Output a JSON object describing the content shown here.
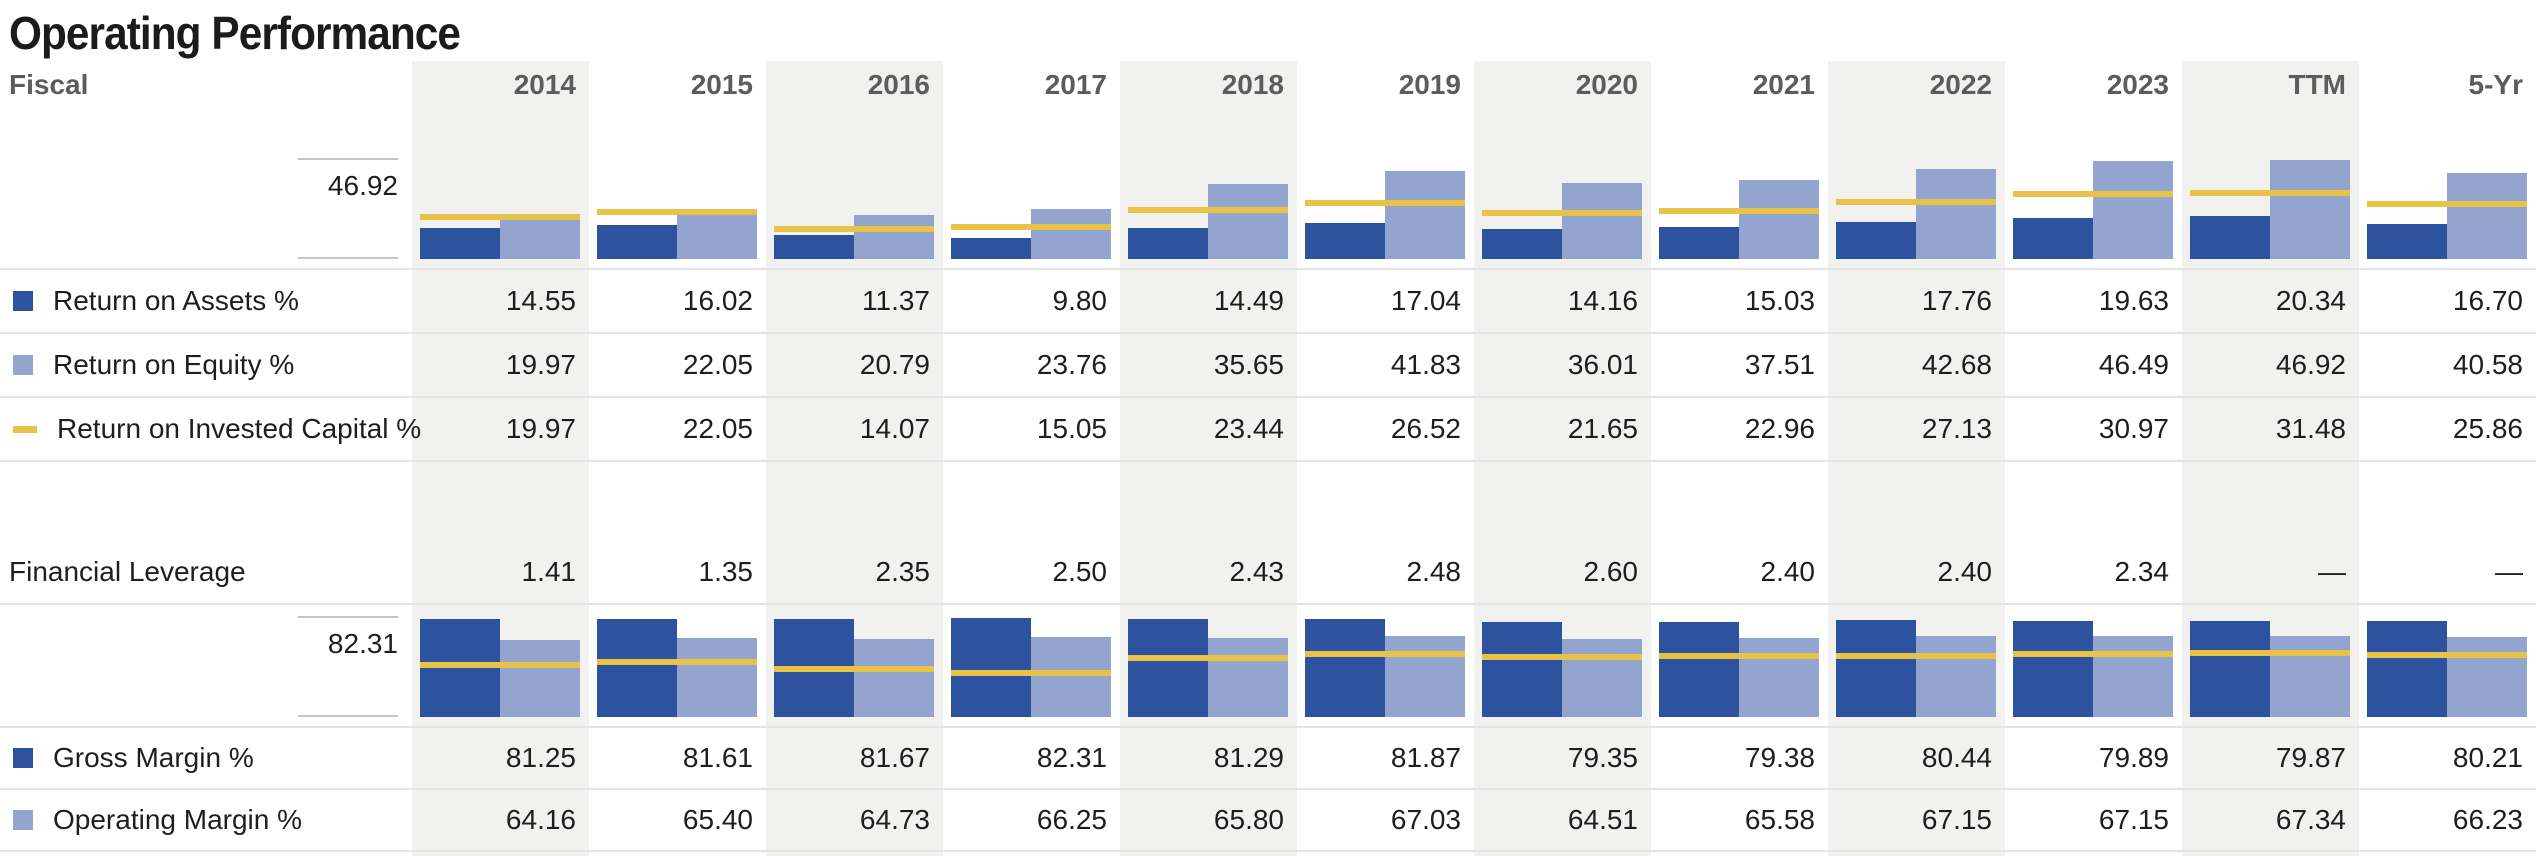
{
  "title": "Operating Performance",
  "header": {
    "fiscal_label": "Fiscal",
    "columns": [
      "2014",
      "2015",
      "2016",
      "2017",
      "2018",
      "2019",
      "2020",
      "2021",
      "2022",
      "2023",
      "TTM",
      "5-Yr"
    ],
    "shaded_column_indexes": [
      0,
      2,
      4,
      6,
      8,
      10
    ]
  },
  "colors": {
    "dark_blue": "#2e539e",
    "light_blue": "#93a5ce",
    "yellow": "#e8c348",
    "column_shade": "#f1f1f0",
    "divider": "#e4e4e4",
    "tick": "#c6c6c6",
    "header_text": "#5c5c5c",
    "text": "#1e1e1e"
  },
  "rows": [
    {
      "id": "return-on-assets",
      "label": "Return on Assets %",
      "swatch": "dark_blue",
      "values": [
        "14.55",
        "16.02",
        "11.37",
        "9.80",
        "14.49",
        "17.04",
        "14.16",
        "15.03",
        "17.76",
        "19.63",
        "20.34",
        "16.70"
      ]
    },
    {
      "id": "return-on-equity",
      "label": "Return on Equity %",
      "swatch": "light_blue",
      "values": [
        "19.97",
        "22.05",
        "20.79",
        "23.76",
        "35.65",
        "41.83",
        "36.01",
        "37.51",
        "42.68",
        "46.49",
        "46.92",
        "40.58"
      ]
    },
    {
      "id": "return-on-invested-capital",
      "label": "Return on Invested Capital %",
      "swatch": "yellow_dash",
      "values": [
        "19.97",
        "22.05",
        "14.07",
        "15.05",
        "23.44",
        "26.52",
        "21.65",
        "22.96",
        "27.13",
        "30.97",
        "31.48",
        "25.86"
      ]
    },
    {
      "id": "financial-leverage",
      "label": "Financial Leverage",
      "swatch": null,
      "values": [
        "1.41",
        "1.35",
        "2.35",
        "2.50",
        "2.43",
        "2.48",
        "2.60",
        "2.40",
        "2.40",
        "2.34",
        "—",
        "—"
      ]
    },
    {
      "id": "gross-margin",
      "label": "Gross Margin %",
      "swatch": "dark_blue",
      "values": [
        "81.25",
        "81.61",
        "81.67",
        "82.31",
        "81.29",
        "81.87",
        "79.35",
        "79.38",
        "80.44",
        "79.89",
        "79.87",
        "80.21"
      ]
    },
    {
      "id": "operating-margin",
      "label": "Operating Margin %",
      "swatch": "light_blue",
      "values": [
        "64.16",
        "65.40",
        "64.73",
        "66.25",
        "65.80",
        "67.03",
        "64.51",
        "65.58",
        "67.15",
        "67.15",
        "67.34",
        "66.23"
      ]
    }
  ],
  "chart_data": [
    {
      "type": "bar",
      "title": "Returns on assets, equity and invested capital",
      "categories": [
        "2014",
        "2015",
        "2016",
        "2017",
        "2018",
        "2019",
        "2020",
        "2021",
        "2022",
        "2023",
        "TTM",
        "5-Yr"
      ],
      "ylim": [
        0,
        46.92
      ],
      "scale_label": "46.92",
      "grid": "off",
      "legend_position": "table-rows-below",
      "series": [
        {
          "name": "Return on Assets %",
          "color": "dark_blue",
          "values": [
            14.55,
            16.02,
            11.37,
            9.8,
            14.49,
            17.04,
            14.16,
            15.03,
            17.76,
            19.63,
            20.34,
            16.7
          ]
        },
        {
          "name": "Return on Equity %",
          "color": "light_blue",
          "values": [
            19.97,
            22.05,
            20.79,
            23.76,
            35.65,
            41.83,
            36.01,
            37.51,
            42.68,
            46.49,
            46.92,
            40.58
          ]
        }
      ],
      "line_series": {
        "name": "Return on Invested Capital %",
        "color": "yellow",
        "values": [
          19.97,
          22.05,
          14.07,
          15.05,
          23.44,
          26.52,
          21.65,
          22.96,
          27.13,
          30.97,
          31.48,
          25.86
        ]
      }
    },
    {
      "type": "bar",
      "title": "Gross and operating margins",
      "categories": [
        "2014",
        "2015",
        "2016",
        "2017",
        "2018",
        "2019",
        "2020",
        "2021",
        "2022",
        "2023",
        "TTM",
        "5-Yr"
      ],
      "ylim": [
        0,
        82.31
      ],
      "scale_label": "82.31",
      "grid": "off",
      "legend_position": "table-rows-below",
      "series": [
        {
          "name": "Gross Margin %",
          "color": "dark_blue",
          "values": [
            81.25,
            81.61,
            81.67,
            82.31,
            81.29,
            81.87,
            79.35,
            79.38,
            80.44,
            79.89,
            79.87,
            80.21
          ]
        },
        {
          "name": "Operating Margin %",
          "color": "light_blue",
          "values": [
            64.16,
            65.4,
            64.73,
            66.25,
            65.8,
            67.03,
            64.51,
            65.58,
            67.15,
            67.15,
            67.34,
            66.23
          ]
        }
      ],
      "line_series": {
        "name": "unlabeled-yellow-line-estimated",
        "color": "yellow",
        "values": [
          43,
          45.5,
          40,
          36.5,
          49,
          52.5,
          49.5,
          51,
          51,
          52.5,
          53,
          51.5
        ]
      }
    }
  ]
}
